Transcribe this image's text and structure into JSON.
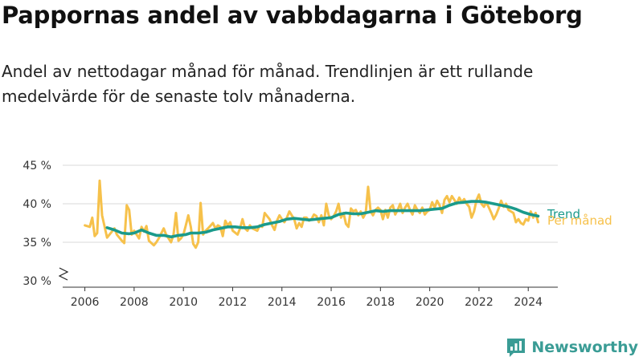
{
  "title": "Pappornas andel av vabbdagarna i Göteborg",
  "subtitle": "Andel av nettodagar månad för månad. Trendlinjen är ett rullande medelvärde för de senaste tolv månaderna.",
  "brand": {
    "name": "Newsworthy",
    "icon": "bar-chart-logo-icon",
    "color": "#3a9c95"
  },
  "chart_data": {
    "type": "line",
    "ylim": [
      30,
      45
    ],
    "yticks": [
      30,
      35,
      40,
      45
    ],
    "ytick_labels": [
      "30 %",
      "35 %",
      "40 %",
      "45 %"
    ],
    "y_axis_break": true,
    "xlim": [
      2005.1,
      2025.2
    ],
    "xticks": [
      2006,
      2008,
      2010,
      2012,
      2014,
      2016,
      2018,
      2020,
      2022,
      2024
    ],
    "xtick_labels": [
      "2006",
      "2008",
      "2010",
      "2012",
      "2014",
      "2016",
      "2018",
      "2020",
      "2022",
      "2024"
    ],
    "grid": "horizontal",
    "series": [
      {
        "name": "Per månad",
        "color": "#f6c14b",
        "points": [
          [
            2006.0,
            37.2
          ],
          [
            2006.2,
            37.0
          ],
          [
            2006.3,
            38.2
          ],
          [
            2006.4,
            35.8
          ],
          [
            2006.5,
            36.2
          ],
          [
            2006.6,
            43.0
          ],
          [
            2006.7,
            38.5
          ],
          [
            2006.9,
            35.6
          ],
          [
            2007.0,
            36.0
          ],
          [
            2007.2,
            36.8
          ],
          [
            2007.3,
            36.0
          ],
          [
            2007.5,
            35.2
          ],
          [
            2007.6,
            34.9
          ],
          [
            2007.7,
            39.8
          ],
          [
            2007.8,
            39.2
          ],
          [
            2007.9,
            36.0
          ],
          [
            2008.0,
            36.5
          ],
          [
            2008.2,
            35.5
          ],
          [
            2008.3,
            37.0
          ],
          [
            2008.4,
            36.4
          ],
          [
            2008.5,
            37.1
          ],
          [
            2008.6,
            35.2
          ],
          [
            2008.8,
            34.6
          ],
          [
            2008.9,
            35.0
          ],
          [
            2009.0,
            35.5
          ],
          [
            2009.2,
            36.8
          ],
          [
            2009.3,
            36.0
          ],
          [
            2009.5,
            35.0
          ],
          [
            2009.6,
            36.0
          ],
          [
            2009.7,
            38.8
          ],
          [
            2009.8,
            35.2
          ],
          [
            2009.9,
            35.5
          ],
          [
            2010.0,
            36.0
          ],
          [
            2010.1,
            37.2
          ],
          [
            2010.2,
            38.5
          ],
          [
            2010.3,
            37.0
          ],
          [
            2010.4,
            34.8
          ],
          [
            2010.5,
            34.3
          ],
          [
            2010.6,
            35.0
          ],
          [
            2010.7,
            40.1
          ],
          [
            2010.8,
            36.0
          ],
          [
            2010.9,
            36.5
          ],
          [
            2011.0,
            36.8
          ],
          [
            2011.2,
            37.5
          ],
          [
            2011.3,
            36.8
          ],
          [
            2011.4,
            37.2
          ],
          [
            2011.5,
            37.0
          ],
          [
            2011.6,
            35.8
          ],
          [
            2011.7,
            37.8
          ],
          [
            2011.8,
            37.2
          ],
          [
            2011.9,
            37.6
          ],
          [
            2012.0,
            36.5
          ],
          [
            2012.2,
            36.0
          ],
          [
            2012.3,
            36.8
          ],
          [
            2012.4,
            38.0
          ],
          [
            2012.5,
            36.8
          ],
          [
            2012.6,
            36.5
          ],
          [
            2012.7,
            37.2
          ],
          [
            2012.8,
            36.8
          ],
          [
            2013.0,
            36.5
          ],
          [
            2013.1,
            37.2
          ],
          [
            2013.2,
            37.0
          ],
          [
            2013.3,
            38.8
          ],
          [
            2013.4,
            38.4
          ],
          [
            2013.5,
            38.0
          ],
          [
            2013.6,
            37.2
          ],
          [
            2013.7,
            36.6
          ],
          [
            2013.8,
            37.8
          ],
          [
            2013.9,
            38.5
          ],
          [
            2014.0,
            38.0
          ],
          [
            2014.1,
            37.6
          ],
          [
            2014.2,
            38.2
          ],
          [
            2014.3,
            39.0
          ],
          [
            2014.4,
            38.5
          ],
          [
            2014.5,
            38.0
          ],
          [
            2014.6,
            36.8
          ],
          [
            2014.7,
            37.5
          ],
          [
            2014.8,
            37.0
          ],
          [
            2014.9,
            38.2
          ],
          [
            2015.0,
            38.2
          ],
          [
            2015.1,
            37.8
          ],
          [
            2015.2,
            38.0
          ],
          [
            2015.3,
            38.6
          ],
          [
            2015.4,
            38.4
          ],
          [
            2015.5,
            37.6
          ],
          [
            2015.6,
            38.5
          ],
          [
            2015.7,
            37.2
          ],
          [
            2015.8,
            40.0
          ],
          [
            2015.9,
            38.5
          ],
          [
            2016.0,
            38.0
          ],
          [
            2016.1,
            38.4
          ],
          [
            2016.2,
            39.0
          ],
          [
            2016.3,
            40.0
          ],
          [
            2016.4,
            38.2
          ],
          [
            2016.5,
            38.8
          ],
          [
            2016.6,
            37.4
          ],
          [
            2016.7,
            37.0
          ],
          [
            2016.8,
            39.4
          ],
          [
            2016.9,
            39.0
          ],
          [
            2017.0,
            39.2
          ],
          [
            2017.1,
            38.5
          ],
          [
            2017.2,
            39.0
          ],
          [
            2017.3,
            38.2
          ],
          [
            2017.4,
            38.8
          ],
          [
            2017.5,
            42.2
          ],
          [
            2017.6,
            39.0
          ],
          [
            2017.7,
            38.5
          ],
          [
            2017.8,
            39.2
          ],
          [
            2017.9,
            39.5
          ],
          [
            2018.0,
            39.2
          ],
          [
            2018.1,
            38.0
          ],
          [
            2018.2,
            39.2
          ],
          [
            2018.3,
            38.2
          ],
          [
            2018.4,
            39.5
          ],
          [
            2018.5,
            39.8
          ],
          [
            2018.6,
            38.6
          ],
          [
            2018.7,
            39.2
          ],
          [
            2018.8,
            40.0
          ],
          [
            2018.9,
            38.8
          ],
          [
            2019.0,
            39.5
          ],
          [
            2019.1,
            40.0
          ],
          [
            2019.2,
            39.2
          ],
          [
            2019.3,
            38.6
          ],
          [
            2019.4,
            39.8
          ],
          [
            2019.5,
            39.2
          ],
          [
            2019.6,
            38.8
          ],
          [
            2019.7,
            39.5
          ],
          [
            2019.8,
            38.6
          ],
          [
            2019.9,
            39.0
          ],
          [
            2020.0,
            39.2
          ],
          [
            2020.1,
            40.2
          ],
          [
            2020.2,
            39.5
          ],
          [
            2020.3,
            40.4
          ],
          [
            2020.4,
            39.8
          ],
          [
            2020.5,
            38.8
          ],
          [
            2020.6,
            40.5
          ],
          [
            2020.7,
            41.0
          ],
          [
            2020.8,
            40.2
          ],
          [
            2020.9,
            41.0
          ],
          [
            2021.0,
            40.5
          ],
          [
            2021.1,
            40.0
          ],
          [
            2021.2,
            40.8
          ],
          [
            2021.3,
            40.2
          ],
          [
            2021.4,
            40.6
          ],
          [
            2021.5,
            40.0
          ],
          [
            2021.6,
            39.6
          ],
          [
            2021.7,
            38.2
          ],
          [
            2021.8,
            39.0
          ],
          [
            2021.9,
            40.5
          ],
          [
            2022.0,
            41.2
          ],
          [
            2022.1,
            40.0
          ],
          [
            2022.2,
            39.6
          ],
          [
            2022.3,
            40.2
          ],
          [
            2022.4,
            39.5
          ],
          [
            2022.5,
            38.8
          ],
          [
            2022.6,
            38.0
          ],
          [
            2022.7,
            38.6
          ],
          [
            2022.8,
            39.4
          ],
          [
            2022.9,
            40.4
          ],
          [
            2023.0,
            39.6
          ],
          [
            2023.1,
            40.0
          ],
          [
            2023.2,
            39.2
          ],
          [
            2023.3,
            39.0
          ],
          [
            2023.4,
            38.8
          ],
          [
            2023.5,
            37.6
          ],
          [
            2023.6,
            38.0
          ],
          [
            2023.7,
            37.5
          ],
          [
            2023.8,
            37.3
          ],
          [
            2023.9,
            38.0
          ],
          [
            2024.0,
            37.8
          ],
          [
            2024.1,
            39.0
          ],
          [
            2024.2,
            38.2
          ],
          [
            2024.3,
            38.8
          ],
          [
            2024.4,
            37.6
          ]
        ]
      },
      {
        "name": "Trend",
        "color": "#1a9a8b",
        "points": [
          [
            2006.9,
            36.9
          ],
          [
            2007.2,
            36.6
          ],
          [
            2007.5,
            36.2
          ],
          [
            2007.8,
            36.1
          ],
          [
            2008.0,
            36.2
          ],
          [
            2008.3,
            36.6
          ],
          [
            2008.6,
            36.2
          ],
          [
            2008.9,
            35.9
          ],
          [
            2009.2,
            35.9
          ],
          [
            2009.5,
            35.7
          ],
          [
            2009.8,
            35.9
          ],
          [
            2010.1,
            36.0
          ],
          [
            2010.3,
            36.2
          ],
          [
            2010.6,
            36.2
          ],
          [
            2010.9,
            36.3
          ],
          [
            2011.2,
            36.6
          ],
          [
            2011.5,
            36.8
          ],
          [
            2011.8,
            37.0
          ],
          [
            2012.1,
            37.0
          ],
          [
            2012.4,
            36.9
          ],
          [
            2012.7,
            36.9
          ],
          [
            2013.0,
            37.0
          ],
          [
            2013.3,
            37.3
          ],
          [
            2013.6,
            37.5
          ],
          [
            2013.9,
            37.7
          ],
          [
            2014.2,
            38.0
          ],
          [
            2014.5,
            38.1
          ],
          [
            2014.8,
            38.0
          ],
          [
            2015.1,
            37.9
          ],
          [
            2015.4,
            38.0
          ],
          [
            2015.7,
            38.1
          ],
          [
            2016.0,
            38.2
          ],
          [
            2016.3,
            38.6
          ],
          [
            2016.6,
            38.8
          ],
          [
            2016.9,
            38.7
          ],
          [
            2017.2,
            38.7
          ],
          [
            2017.5,
            38.9
          ],
          [
            2017.8,
            39.1
          ],
          [
            2018.1,
            39.0
          ],
          [
            2018.4,
            39.1
          ],
          [
            2018.7,
            39.1
          ],
          [
            2019.0,
            39.1
          ],
          [
            2019.3,
            39.1
          ],
          [
            2019.6,
            39.1
          ],
          [
            2019.9,
            39.2
          ],
          [
            2020.2,
            39.3
          ],
          [
            2020.5,
            39.4
          ],
          [
            2020.8,
            39.8
          ],
          [
            2021.1,
            40.1
          ],
          [
            2021.4,
            40.2
          ],
          [
            2021.7,
            40.3
          ],
          [
            2022.0,
            40.3
          ],
          [
            2022.3,
            40.2
          ],
          [
            2022.6,
            40.0
          ],
          [
            2022.9,
            39.8
          ],
          [
            2023.2,
            39.6
          ],
          [
            2023.5,
            39.3
          ],
          [
            2023.8,
            38.9
          ],
          [
            2024.1,
            38.6
          ],
          [
            2024.4,
            38.4
          ]
        ]
      }
    ]
  }
}
